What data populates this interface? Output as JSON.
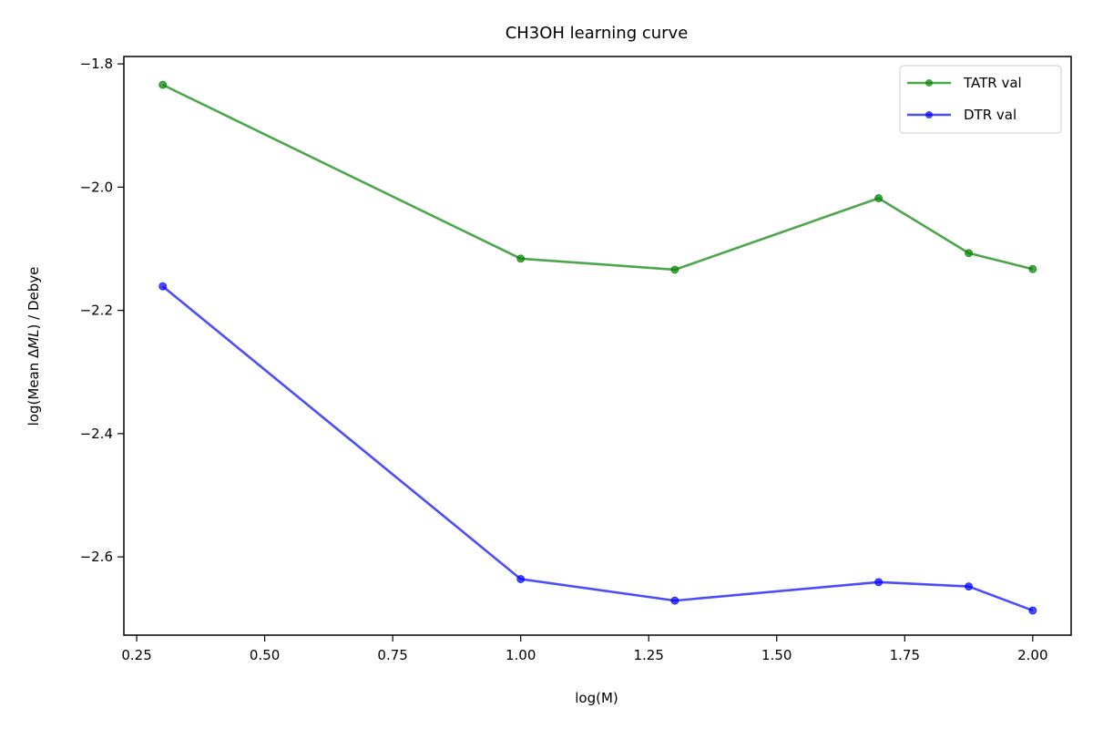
{
  "chart_data": {
    "type": "line",
    "title": "CH3OH learning curve",
    "xlabel": "log(M)",
    "ylabel_parts": [
      "log(Mean ",
      "Δ",
      "ML",
      ") / Debye"
    ],
    "xlim": [
      0.225,
      2.075
    ],
    "ylim": [
      -2.727,
      -1.788
    ],
    "xticks": [
      0.25,
      0.5,
      0.75,
      1.0,
      1.25,
      1.5,
      1.75,
      2.0
    ],
    "xtick_labels": [
      "0.25",
      "0.50",
      "0.75",
      "1.00",
      "1.25",
      "1.50",
      "1.75",
      "2.00"
    ],
    "yticks": [
      -1.8,
      -2.0,
      -2.2,
      -2.4,
      -2.6
    ],
    "ytick_labels": [
      "−1.8",
      "−2.0",
      "−2.2",
      "−2.4",
      "−2.6"
    ],
    "grid": false,
    "legend_position": "top-right",
    "x": [
      0.301,
      1.0,
      1.301,
      1.699,
      1.875,
      2.0
    ],
    "series": [
      {
        "name": "TATR val",
        "color": "#008000",
        "values": [
          -1.834,
          -2.116,
          -2.134,
          -2.018,
          -2.107,
          -2.133
        ]
      },
      {
        "name": "DTR val",
        "color": "#0000ff",
        "values": [
          -2.161,
          -2.636,
          -2.671,
          -2.641,
          -2.648,
          -2.687
        ]
      }
    ]
  }
}
